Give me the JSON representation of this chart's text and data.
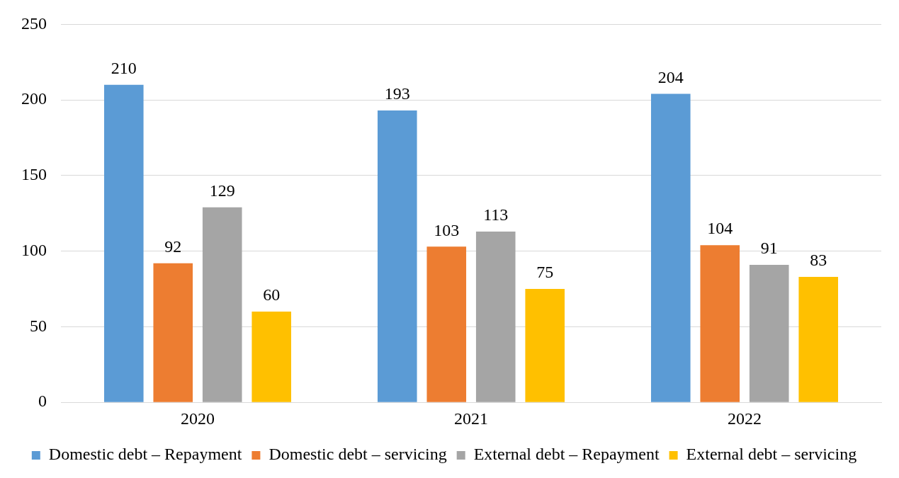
{
  "chart_data": {
    "type": "bar",
    "categories": [
      "2020",
      "2021",
      "2022"
    ],
    "series": [
      {
        "name": "Domestic debt – Repayment",
        "color": "#5b9bd5",
        "values": [
          210,
          193,
          204
        ]
      },
      {
        "name": "Domestic debt – servicing",
        "color": "#ed7d31",
        "values": [
          92,
          103,
          104
        ]
      },
      {
        "name": "External debt – Repayment",
        "color": "#a5a5a5",
        "values": [
          129,
          113,
          91
        ]
      },
      {
        "name": "External debt – servicing",
        "color": "#ffc000",
        "values": [
          60,
          75,
          83
        ]
      }
    ],
    "ylim": [
      0,
      250
    ],
    "yticks": [
      0,
      50,
      100,
      150,
      200,
      250
    ],
    "grid": "y",
    "legend": "bottom",
    "data_labels": true
  }
}
